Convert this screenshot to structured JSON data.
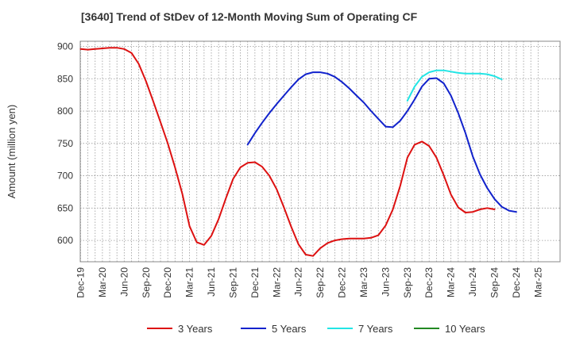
{
  "chart_data": {
    "type": "line",
    "title": "[3640]  Trend of StDev of 12-Month Moving Sum of Operating CF",
    "ylabel": "Amount (million yen)",
    "xlabel": "",
    "ylim": [
      567,
      908
    ],
    "yticks": [
      600,
      650,
      700,
      750,
      800,
      850,
      900
    ],
    "x_tick_labels": [
      "Dec-19",
      "Mar-20",
      "Jun-20",
      "Sep-20",
      "Dec-20",
      "Mar-21",
      "Jun-21",
      "Sep-21",
      "Dec-21",
      "Mar-22",
      "Jun-22",
      "Sep-22",
      "Dec-22",
      "Mar-23",
      "Jun-23",
      "Sep-23",
      "Dec-23",
      "Mar-24",
      "Jun-24",
      "Sep-24",
      "Dec-24",
      "Mar-25"
    ],
    "grid": true,
    "legend_position": "bottom",
    "series": [
      {
        "name": "3 Years",
        "color": "#dd1111",
        "start_month_index": 0,
        "values": [
          896,
          895,
          896,
          897,
          898,
          898,
          896,
          890,
          873,
          846,
          815,
          783,
          750,
          713,
          672,
          622,
          597,
          593,
          607,
          633,
          665,
          695,
          713,
          720,
          721,
          714,
          700,
          679,
          651,
          621,
          594,
          578,
          576,
          588,
          596,
          600,
          602,
          603,
          603,
          603,
          604,
          608,
          623,
          648,
          684,
          728,
          748,
          753,
          746,
          728,
          701,
          671,
          651,
          643,
          644,
          648,
          650,
          648
        ]
      },
      {
        "name": "5 Years",
        "color": "#1122cc",
        "start_month_index": 23,
        "values": [
          748,
          766,
          782,
          797,
          811,
          824,
          837,
          849,
          857,
          860,
          860,
          858,
          853,
          845,
          835,
          824,
          813,
          800,
          788,
          776,
          775,
          785,
          800,
          818,
          838,
          850,
          851,
          843,
          824,
          797,
          766,
          730,
          702,
          681,
          664,
          652,
          646,
          644
        ]
      },
      {
        "name": "7 Years",
        "color": "#22e5e5",
        "start_month_index": 45,
        "values": [
          816,
          838,
          853,
          860,
          863,
          863,
          861,
          859,
          858,
          858,
          858,
          857,
          854,
          849
        ]
      },
      {
        "name": "10 Years",
        "color": "#228822",
        "start_month_index": 0,
        "values": []
      }
    ]
  }
}
